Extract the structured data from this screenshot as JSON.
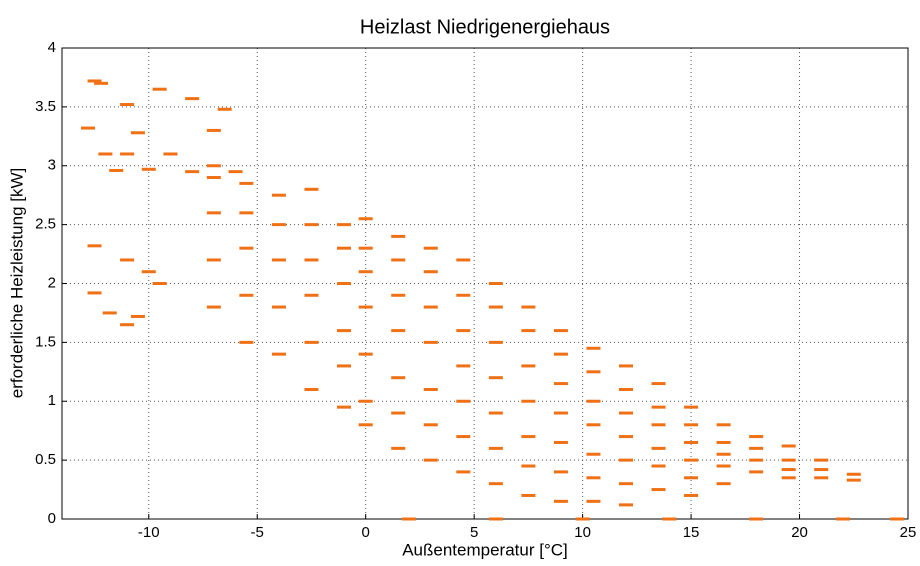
{
  "chart_data": {
    "type": "scatter",
    "title": "Heizlast Niedrigenergiehaus",
    "x_label": "Außentemperatur [°C]",
    "y_label": "erforderliche Heizleistung [kW]",
    "color": "#f07015",
    "grid": true,
    "xlim": [
      -14,
      25
    ],
    "ylim": [
      0,
      4
    ],
    "xticks": [
      -10,
      -5,
      0,
      5,
      10,
      15,
      20,
      25
    ],
    "yticks": [
      0,
      0.5,
      1,
      1.5,
      2,
      2.5,
      3,
      3.5,
      4
    ],
    "x": [
      -12.5,
      -12.2,
      -11,
      -9.5,
      -8,
      -6.5,
      -12.8,
      -10.5,
      -7,
      -12,
      -11,
      -9,
      -11.5,
      -10,
      -8,
      -7,
      -6,
      -12.5,
      -11,
      -10,
      -12.5,
      -11.8,
      -10.5,
      -9.5,
      -11,
      -7,
      -7,
      -7,
      -7,
      -5.5,
      -5.5,
      -5.5,
      -5.5,
      -5.5,
      -4,
      -4,
      -4,
      -4,
      -4,
      -2.5,
      -2.5,
      -2.5,
      -2.5,
      -2.5,
      -2.5,
      -1,
      -1,
      -1,
      -1,
      -1,
      -1,
      0,
      0,
      0,
      0,
      0,
      0,
      0,
      1.5,
      1.5,
      1.5,
      1.5,
      1.5,
      1.5,
      1.5,
      3,
      3,
      3,
      3,
      3,
      3,
      3,
      4.5,
      4.5,
      4.5,
      4.5,
      4.5,
      4.5,
      4.5,
      6,
      6,
      6,
      6,
      6,
      6,
      6,
      7.5,
      7.5,
      7.5,
      7.5,
      7.5,
      7.5,
      7.5,
      9,
      9,
      9,
      9,
      9,
      9,
      9,
      10.5,
      10.5,
      10.5,
      10.5,
      10.5,
      10.5,
      10.5,
      12,
      12,
      12,
      12,
      12,
      12,
      12,
      13.5,
      13.5,
      13.5,
      13.5,
      13.5,
      13.5,
      15,
      15,
      15,
      15,
      15,
      15,
      16.5,
      16.5,
      16.5,
      16.5,
      16.5,
      18,
      18,
      18,
      18,
      19.5,
      19.5,
      19.5,
      19.5,
      21,
      21,
      21,
      22.5,
      22.5,
      2,
      6,
      10,
      14,
      18,
      22,
      24.5
    ],
    "values": [
      3.72,
      3.7,
      3.52,
      3.65,
      3.57,
      3.48,
      3.32,
      3.28,
      3.3,
      3.1,
      3.1,
      3.1,
      2.96,
      2.97,
      2.95,
      3.0,
      2.95,
      2.32,
      2.2,
      2.1,
      1.92,
      1.75,
      1.72,
      2.0,
      1.65,
      2.9,
      2.6,
      2.2,
      1.8,
      2.85,
      2.6,
      2.3,
      1.9,
      1.5,
      2.75,
      2.5,
      2.2,
      1.8,
      1.4,
      2.8,
      2.5,
      2.2,
      1.9,
      1.5,
      1.1,
      2.5,
      2.3,
      2.0,
      1.6,
      1.3,
      0.95,
      2.55,
      2.3,
      2.1,
      1.8,
      1.4,
      1.0,
      0.8,
      2.4,
      2.2,
      1.9,
      1.6,
      1.2,
      0.9,
      0.6,
      2.3,
      2.1,
      1.8,
      1.5,
      1.1,
      0.8,
      0.5,
      2.2,
      1.9,
      1.6,
      1.3,
      1.0,
      0.7,
      0.4,
      2.0,
      1.8,
      1.5,
      1.2,
      0.9,
      0.6,
      0.3,
      1.8,
      1.6,
      1.3,
      1.0,
      0.7,
      0.45,
      0.2,
      1.6,
      1.4,
      1.15,
      0.9,
      0.65,
      0.4,
      0.15,
      1.45,
      1.25,
      1.0,
      0.8,
      0.55,
      0.35,
      0.15,
      1.3,
      1.1,
      0.9,
      0.7,
      0.5,
      0.3,
      0.12,
      1.15,
      0.95,
      0.8,
      0.6,
      0.45,
      0.25,
      0.95,
      0.8,
      0.65,
      0.5,
      0.35,
      0.2,
      0.8,
      0.65,
      0.55,
      0.45,
      0.3,
      0.7,
      0.6,
      0.5,
      0.4,
      0.62,
      0.5,
      0.42,
      0.35,
      0.5,
      0.42,
      0.35,
      0.38,
      0.33,
      0,
      0,
      0,
      0,
      0,
      0,
      0
    ]
  }
}
